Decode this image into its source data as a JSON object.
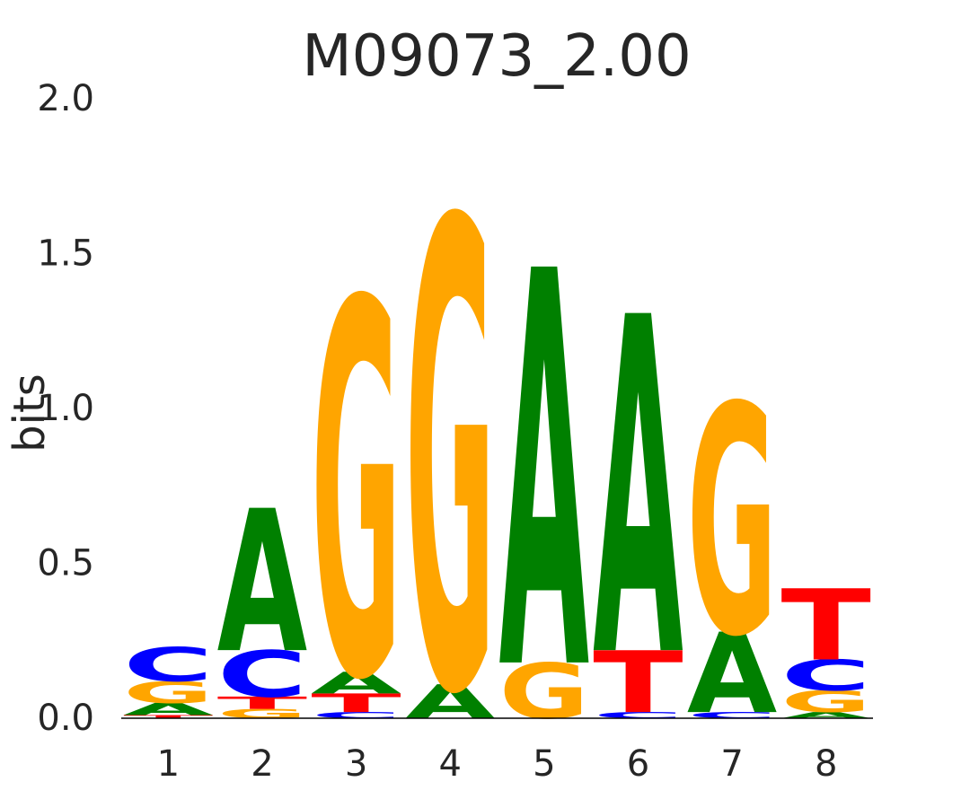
{
  "chart_data": {
    "type": "sequence-logo",
    "title": "M09073_2.00",
    "ylabel": "bits",
    "ylim": [
      0,
      2.0
    ],
    "yticks": [
      "0.0",
      "0.5",
      "1.0",
      "1.5",
      "2.0"
    ],
    "positions": [
      "1",
      "2",
      "3",
      "4",
      "5",
      "6",
      "7",
      "8"
    ],
    "colors": {
      "A": "#008000",
      "C": "#0000ff",
      "G": "#ffa500",
      "T": "#ff0000"
    },
    "columns": [
      [
        {
          "base": "T",
          "bits": 0.01
        },
        {
          "base": "A",
          "bits": 0.04
        },
        {
          "base": "G",
          "bits": 0.07
        },
        {
          "base": "C",
          "bits": 0.11
        }
      ],
      [
        {
          "base": "G",
          "bits": 0.03
        },
        {
          "base": "T",
          "bits": 0.04
        },
        {
          "base": "C",
          "bits": 0.15
        },
        {
          "base": "A",
          "bits": 0.46
        }
      ],
      [
        {
          "base": "C",
          "bits": 0.02
        },
        {
          "base": "T",
          "bits": 0.06
        },
        {
          "base": "A",
          "bits": 0.07
        },
        {
          "base": "G",
          "bits": 1.21
        }
      ],
      [
        {
          "base": "A",
          "bits": 0.11
        },
        {
          "base": "G",
          "bits": 1.51
        }
      ],
      [
        {
          "base": "G",
          "bits": 0.18
        },
        {
          "base": "A",
          "bits": 1.28
        }
      ],
      [
        {
          "base": "C",
          "bits": 0.02
        },
        {
          "base": "T",
          "bits": 0.2
        },
        {
          "base": "A",
          "bits": 1.09
        }
      ],
      [
        {
          "base": "C",
          "bits": 0.02
        },
        {
          "base": "A",
          "bits": 0.26
        },
        {
          "base": "G",
          "bits": 0.74
        }
      ],
      [
        {
          "base": "A",
          "bits": 0.02
        },
        {
          "base": "G",
          "bits": 0.07
        },
        {
          "base": "C",
          "bits": 0.1
        },
        {
          "base": "T",
          "bits": 0.23
        }
      ]
    ]
  }
}
